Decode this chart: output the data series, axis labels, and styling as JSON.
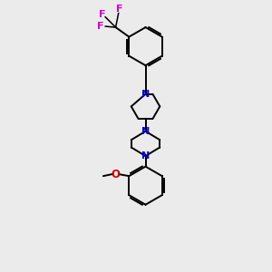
{
  "background_color": "#ebebeb",
  "bond_color": "#000000",
  "N_color": "#0000cc",
  "O_color": "#cc0000",
  "F_color": "#cc00cc",
  "line_width": 1.4,
  "figsize": [
    3.0,
    3.0
  ],
  "dpi": 100,
  "xlim": [
    -3.5,
    3.5
  ],
  "ylim": [
    -7.5,
    6.5
  ]
}
